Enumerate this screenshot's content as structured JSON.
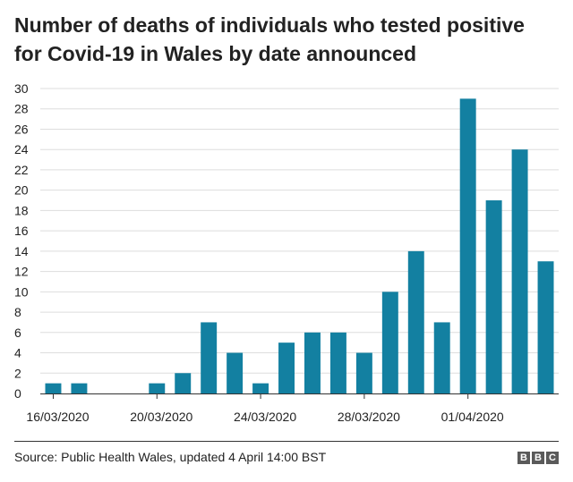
{
  "chart_data": {
    "type": "bar",
    "title_lines": [
      "Number of deaths of individuals who tested positive",
      "for Covid-19 in Wales by date announced"
    ],
    "categories": [
      "16/03/2020",
      "17/03/2020",
      "18/03/2020",
      "19/03/2020",
      "20/03/2020",
      "21/03/2020",
      "22/03/2020",
      "23/03/2020",
      "24/03/2020",
      "25/03/2020",
      "26/03/2020",
      "27/03/2020",
      "28/03/2020",
      "29/03/2020",
      "30/03/2020",
      "31/03/2020",
      "01/04/2020",
      "02/04/2020",
      "03/04/2020",
      "04/04/2020"
    ],
    "values": [
      1,
      1,
      0,
      0,
      1,
      2,
      7,
      4,
      1,
      5,
      6,
      6,
      4,
      10,
      14,
      7,
      29,
      19,
      24,
      13
    ],
    "x_tick_labels": [
      "16/03/2020",
      "20/03/2020",
      "24/03/2020",
      "28/03/2020",
      "01/04/2020"
    ],
    "x_tick_indices": [
      0,
      4,
      8,
      12,
      16
    ],
    "ylim": [
      0,
      30
    ],
    "y_ticks": [
      0,
      2,
      4,
      6,
      8,
      10,
      12,
      14,
      16,
      18,
      20,
      22,
      24,
      26,
      28,
      30
    ],
    "grid": true,
    "bar_color": "#1380a1",
    "grid_color": "#dddddd"
  },
  "footer": {
    "source": "Source: Public Health Wales, updated 4 April 14:00 BST",
    "logo_letters": [
      "B",
      "B",
      "C"
    ]
  }
}
